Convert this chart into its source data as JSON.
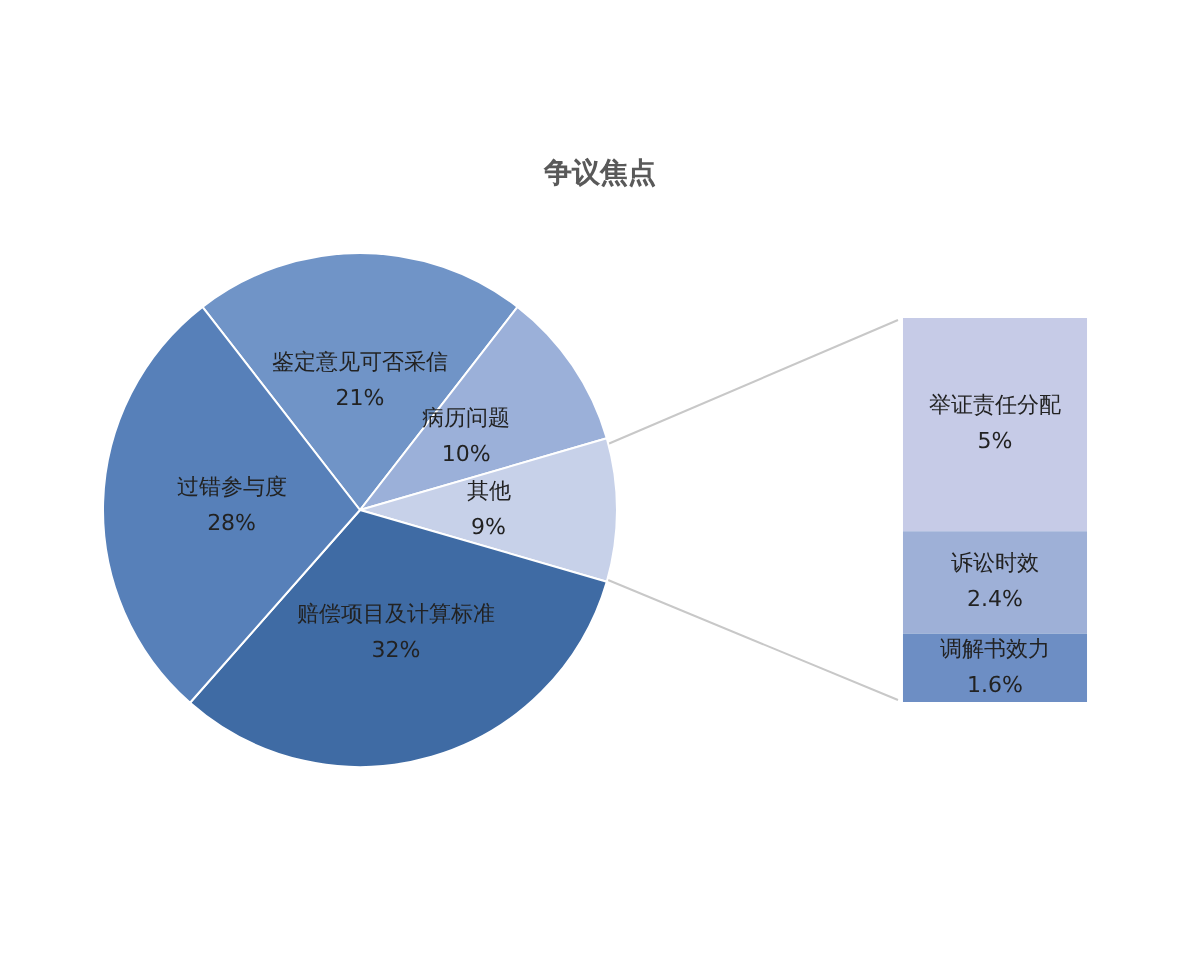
{
  "chart_data": [
    {
      "type": "pie",
      "title": "争议焦点",
      "categories": [
        "鉴定意见可否采信",
        "病历问题",
        "其他",
        "赔偿项目及计算标准",
        "过错参与度"
      ],
      "values": [
        21,
        10,
        9,
        32,
        28
      ],
      "colors": [
        "#7094c7",
        "#9bb0d9",
        "#c7d1e9",
        "#3f6ba4",
        "#5780b9"
      ],
      "value_labels": [
        "21%",
        "10%",
        "9%",
        "32%",
        "28%"
      ]
    },
    {
      "type": "bar",
      "stacked": true,
      "categories": [
        null
      ],
      "series": [
        {
          "name": "调解书效力",
          "color": "#6d8ec4",
          "values": [
            1.6
          ],
          "value_labels": [
            "1.6%"
          ]
        },
        {
          "name": "诉讼时效",
          "color": "#9eb0d7",
          "values": [
            2.4
          ],
          "value_labels": [
            "2.4%"
          ]
        },
        {
          "name": "举证责任分配",
          "color": "#c6cbe7",
          "values": [
            5
          ],
          "value_labels": [
            "5%"
          ]
        }
      ]
    }
  ]
}
